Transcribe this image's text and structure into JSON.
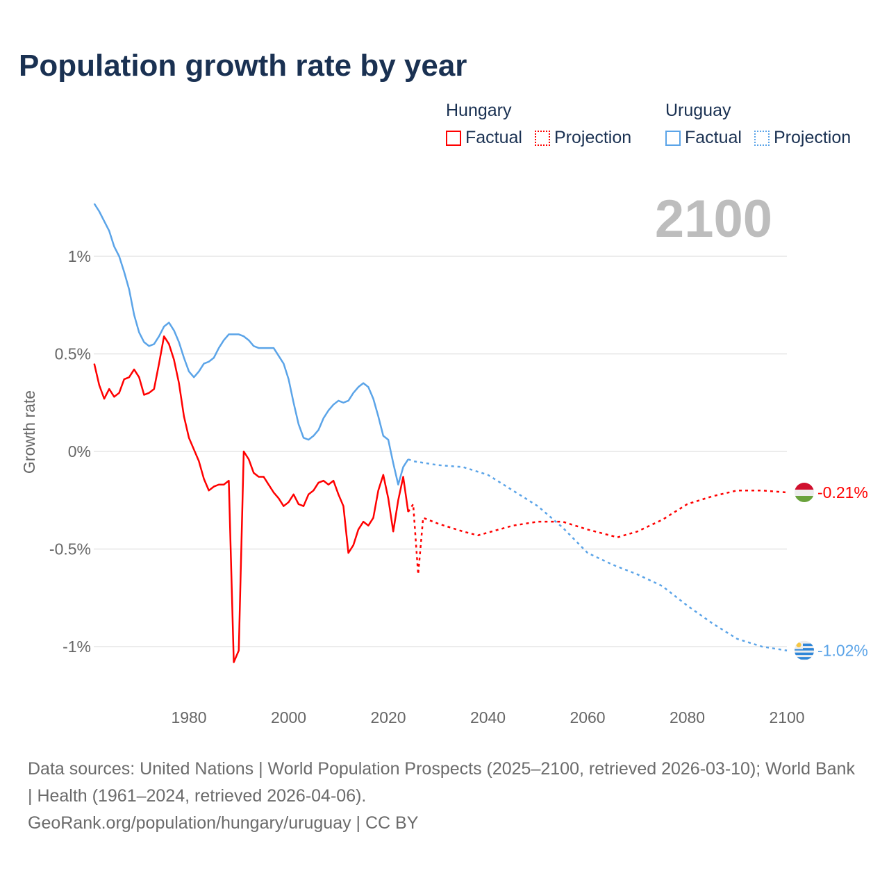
{
  "title": "Population growth rate by year",
  "current_year_label": "2100",
  "legend": [
    {
      "group": "Hungary",
      "factual": "Factual",
      "projection": "Projection",
      "color": "#ff0000"
    },
    {
      "group": "Uruguay",
      "factual": "Factual",
      "projection": "Projection",
      "color": "#5ba4e8"
    }
  ],
  "footer": {
    "sources": "Data sources: United Nations | World Population Prospects (2025–2100, retrieved 2026-03-10); World Bank | Health (1961–2024, retrieved 2026-04-06).",
    "credit": "GeoRank.org/population/hungary/uruguay | CC BY"
  },
  "chart_data": {
    "type": "line",
    "title": "Population growth rate by year",
    "xlabel": "",
    "ylabel": "Growth rate",
    "xlim": [
      1961,
      2100
    ],
    "ylim": [
      -1.15,
      1.35
    ],
    "x_ticks": [
      1980,
      2000,
      2020,
      2040,
      2060,
      2080,
      2100
    ],
    "y_ticks": [
      {
        "v": 1,
        "label": "1%"
      },
      {
        "v": 0.5,
        "label": "0.5%"
      },
      {
        "v": 0,
        "label": "0%"
      },
      {
        "v": -0.5,
        "label": "-0.5%"
      },
      {
        "v": -1,
        "label": "-1%"
      }
    ],
    "grid": true,
    "series": [
      {
        "name": "Hungary",
        "color": "#ff0000",
        "end_label": "-0.21%",
        "factual": {
          "start": 1961,
          "values": [
            0.45,
            0.34,
            0.27,
            0.32,
            0.28,
            0.3,
            0.37,
            0.38,
            0.42,
            0.38,
            0.29,
            0.3,
            0.32,
            0.45,
            0.59,
            0.55,
            0.47,
            0.35,
            0.18,
            0.07,
            0.01,
            -0.05,
            -0.14,
            -0.2,
            -0.18,
            -0.17,
            -0.17,
            -0.15,
            -1.08,
            -1.02,
            0.0,
            -0.04,
            -0.11,
            -0.13,
            -0.13,
            -0.17,
            -0.21,
            -0.24,
            -0.28,
            -0.26,
            -0.22,
            -0.27,
            -0.28,
            -0.22,
            -0.2,
            -0.16,
            -0.15,
            -0.17,
            -0.15,
            -0.22,
            -0.28,
            -0.52,
            -0.48,
            -0.4,
            -0.36,
            -0.38,
            -0.34,
            -0.2,
            -0.12,
            -0.24,
            -0.41,
            -0.25,
            -0.13,
            -0.31
          ]
        },
        "projection": {
          "x": [
            2024,
            2025,
            2026,
            2027,
            2030,
            2035,
            2038,
            2045,
            2050,
            2055,
            2060,
            2066,
            2070,
            2075,
            2080,
            2085,
            2090,
            2095,
            2100
          ],
          "values": [
            -0.31,
            -0.27,
            -0.63,
            -0.34,
            -0.37,
            -0.41,
            -0.43,
            -0.38,
            -0.36,
            -0.36,
            -0.4,
            -0.44,
            -0.41,
            -0.35,
            -0.27,
            -0.23,
            -0.2,
            -0.2,
            -0.21
          ]
        }
      },
      {
        "name": "Uruguay",
        "color": "#5ba4e8",
        "end_label": "-1.02%",
        "factual": {
          "start": 1961,
          "values": [
            1.27,
            1.23,
            1.18,
            1.13,
            1.05,
            1.0,
            0.92,
            0.83,
            0.7,
            0.61,
            0.56,
            0.54,
            0.55,
            0.59,
            0.64,
            0.66,
            0.62,
            0.56,
            0.48,
            0.41,
            0.38,
            0.41,
            0.45,
            0.46,
            0.48,
            0.53,
            0.57,
            0.6,
            0.6,
            0.6,
            0.59,
            0.57,
            0.54,
            0.53,
            0.53,
            0.53,
            0.53,
            0.49,
            0.45,
            0.37,
            0.25,
            0.14,
            0.07,
            0.06,
            0.08,
            0.11,
            0.17,
            0.21,
            0.24,
            0.26,
            0.25,
            0.26,
            0.3,
            0.33,
            0.35,
            0.33,
            0.27,
            0.18,
            0.08,
            0.06,
            -0.06,
            -0.17,
            -0.08,
            -0.04
          ]
        },
        "projection": {
          "x": [
            2024,
            2025,
            2030,
            2035,
            2040,
            2045,
            2050,
            2055,
            2060,
            2065,
            2070,
            2075,
            2080,
            2085,
            2090,
            2095,
            2100
          ],
          "values": [
            -0.04,
            -0.05,
            -0.07,
            -0.08,
            -0.12,
            -0.2,
            -0.28,
            -0.39,
            -0.52,
            -0.58,
            -0.63,
            -0.69,
            -0.79,
            -0.88,
            -0.96,
            -1.0,
            -1.02
          ]
        }
      }
    ]
  }
}
